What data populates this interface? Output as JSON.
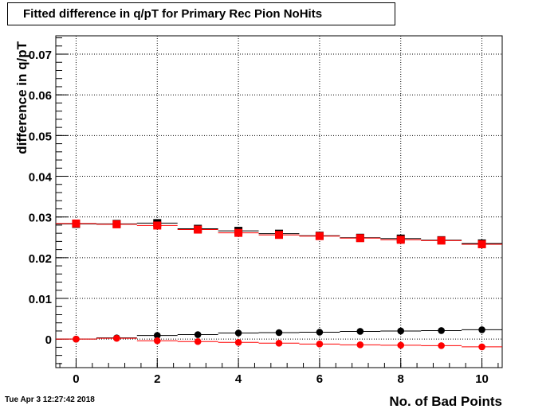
{
  "title": "Fitted difference in q/pT for Primary Rec Pion NoHits",
  "timestamp": "Tue Apr  3 12:27:42 2018",
  "chart_data": {
    "type": "scatter",
    "title": "Fitted difference in q/pT for Primary Rec Pion NoHits",
    "xlabel": "No. of Bad Points",
    "ylabel": "difference in q/pT",
    "xlim": [
      -0.5,
      10.5
    ],
    "ylim": [
      -0.007,
      0.0745
    ],
    "grid": true,
    "x_ticks": [
      0,
      2,
      4,
      6,
      8,
      10
    ],
    "x_tick_labels": [
      "0",
      "2",
      "4",
      "6",
      "8",
      "10"
    ],
    "y_ticks": [
      0,
      0.01,
      0.02,
      0.03,
      0.04,
      0.05,
      0.06,
      0.07
    ],
    "y_tick_labels": [
      "0",
      "0.01",
      "0.02",
      "0.03",
      "0.04",
      "0.05",
      "0.06",
      "0.07"
    ],
    "x": [
      0,
      1,
      2,
      3,
      4,
      5,
      6,
      7,
      8,
      9,
      10
    ],
    "series": [
      {
        "marker": "square",
        "color": "#000000",
        "values": [
          0.0283,
          0.0283,
          0.0285,
          0.0271,
          0.0266,
          0.0259,
          0.0254,
          0.0249,
          0.0247,
          0.0243,
          0.0235
        ]
      },
      {
        "marker": "square",
        "color": "#ff0000",
        "values": [
          0.0284,
          0.0282,
          0.0279,
          0.0269,
          0.0261,
          0.0256,
          0.0253,
          0.0248,
          0.0244,
          0.0242,
          0.0233
        ]
      },
      {
        "marker": "circle",
        "color": "#000000",
        "values": [
          0.0,
          0.0003,
          0.0009,
          0.0011,
          0.0015,
          0.0016,
          0.0017,
          0.0019,
          0.002,
          0.0021,
          0.0023
        ]
      },
      {
        "marker": "circle",
        "color": "#ff0000",
        "values": [
          0.0,
          0.0002,
          -0.0004,
          -0.0006,
          -0.0008,
          -0.001,
          -0.0012,
          -0.0014,
          -0.0015,
          -0.0016,
          -0.0019
        ]
      }
    ]
  }
}
